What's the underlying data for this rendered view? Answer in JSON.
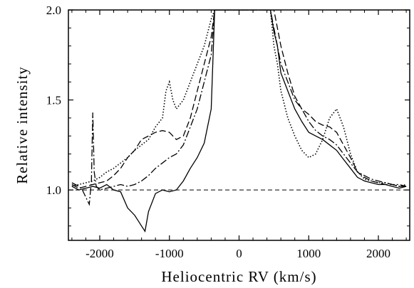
{
  "chart_data": {
    "type": "line",
    "title": "",
    "xlabel": "Heliocentric RV  (km/s)",
    "ylabel": "Relative intensity",
    "xlim": [
      -2450,
      2450
    ],
    "ylim": [
      0.72,
      2.0
    ],
    "grid": false,
    "legend": "none",
    "x_ticks": [
      -2000,
      -1000,
      0,
      1000,
      2000
    ],
    "x_tick_labels": [
      "-2000",
      "-1000",
      "0",
      "1000",
      "2000"
    ],
    "y_ticks": [
      1.0,
      1.5,
      2.0
    ],
    "y_tick_labels": [
      "1.0",
      "1.5",
      "2.0"
    ],
    "reference_line": {
      "y": 1.0,
      "style": "dashed"
    },
    "series": [
      {
        "style": "solid",
        "x": [
          -2400,
          -2300,
          -2200,
          -2100,
          -2000,
          -1900,
          -1800,
          -1700,
          -1600,
          -1500,
          -1450,
          -1400,
          -1350,
          -1300,
          -1200,
          -1100,
          -1000,
          -900,
          -800,
          -700,
          -600,
          -500,
          -400,
          -350,
          450,
          500,
          550,
          600,
          700,
          800,
          900,
          1000,
          1100,
          1200,
          1300,
          1400,
          1500,
          1600,
          1700,
          1800,
          1900,
          2000,
          2100,
          2200,
          2300,
          2400
        ],
        "y": [
          1.02,
          1.0,
          1.01,
          1.02,
          1.01,
          1.03,
          1.0,
          0.99,
          0.9,
          0.86,
          0.83,
          0.8,
          0.77,
          0.88,
          0.98,
          1.0,
          0.99,
          1.0,
          1.05,
          1.12,
          1.18,
          1.26,
          1.45,
          2.0,
          2.0,
          1.88,
          1.8,
          1.65,
          1.55,
          1.45,
          1.38,
          1.32,
          1.3,
          1.28,
          1.25,
          1.22,
          1.17,
          1.12,
          1.07,
          1.05,
          1.04,
          1.03,
          1.03,
          1.02,
          1.01,
          1.02
        ]
      },
      {
        "style": "dashed",
        "x": [
          -2400,
          -2300,
          -2200,
          -2100,
          -2000,
          -1900,
          -1800,
          -1700,
          -1600,
          -1500,
          -1400,
          -1300,
          -1200,
          -1100,
          -1000,
          -900,
          -800,
          -700,
          -600,
          -500,
          -400,
          -350,
          500,
          550,
          600,
          700,
          800,
          900,
          1000,
          1100,
          1200,
          1300,
          1400,
          1500,
          1600,
          1700,
          1800,
          1900,
          2000,
          2100,
          2200,
          2300,
          2400
        ],
        "y": [
          1.03,
          1.01,
          1.02,
          1.03,
          1.04,
          1.05,
          1.08,
          1.12,
          1.18,
          1.22,
          1.28,
          1.3,
          1.32,
          1.33,
          1.32,
          1.28,
          1.3,
          1.4,
          1.55,
          1.7,
          1.85,
          2.0,
          2.0,
          1.9,
          1.8,
          1.65,
          1.52,
          1.45,
          1.42,
          1.38,
          1.36,
          1.35,
          1.32,
          1.25,
          1.18,
          1.1,
          1.07,
          1.05,
          1.04,
          1.03,
          1.03,
          1.02,
          1.02
        ]
      },
      {
        "style": "dotted",
        "x": [
          -2400,
          -2300,
          -2200,
          -2100,
          -2000,
          -1900,
          -1800,
          -1700,
          -1600,
          -1500,
          -1400,
          -1300,
          -1200,
          -1100,
          -1050,
          -1000,
          -950,
          -900,
          -800,
          -700,
          -600,
          -500,
          -400,
          -350,
          450,
          500,
          550,
          600,
          700,
          800,
          900,
          1000,
          1100,
          1200,
          1300,
          1400,
          1500,
          1600,
          1700,
          1800,
          1900,
          2000,
          2100,
          2200,
          2300,
          2400
        ],
        "y": [
          1.02,
          1.03,
          1.04,
          1.05,
          1.07,
          1.1,
          1.12,
          1.15,
          1.18,
          1.22,
          1.25,
          1.28,
          1.35,
          1.4,
          1.55,
          1.6,
          1.5,
          1.45,
          1.5,
          1.6,
          1.7,
          1.8,
          1.95,
          2.0,
          2.0,
          1.8,
          1.7,
          1.55,
          1.4,
          1.3,
          1.22,
          1.18,
          1.2,
          1.28,
          1.4,
          1.45,
          1.35,
          1.2,
          1.1,
          1.06,
          1.05,
          1.04,
          1.04,
          1.03,
          1.02,
          1.03
        ]
      },
      {
        "style": "dash-dot",
        "x": [
          -2400,
          -2300,
          -2250,
          -2200,
          -2150,
          -2120,
          -2100,
          -2080,
          -2050,
          -2000,
          -1900,
          -1800,
          -1700,
          -1600,
          -1500,
          -1400,
          -1300,
          -1200,
          -1100,
          -1000,
          -900,
          -800,
          -700,
          -600,
          -500,
          -400,
          -350,
          450,
          500,
          550,
          600,
          700,
          800,
          900,
          1000,
          1100,
          1200,
          1300,
          1400,
          1500,
          1600,
          1700,
          1800,
          1900,
          2000,
          2100,
          2200,
          2300,
          2400
        ],
        "y": [
          1.04,
          1.02,
          1.0,
          0.96,
          0.92,
          1.05,
          1.43,
          1.1,
          1.02,
          1.0,
          1.01,
          1.02,
          1.03,
          1.02,
          1.03,
          1.05,
          1.08,
          1.12,
          1.15,
          1.18,
          1.2,
          1.25,
          1.35,
          1.45,
          1.6,
          1.75,
          2.0,
          2.0,
          1.9,
          1.8,
          1.7,
          1.6,
          1.5,
          1.45,
          1.38,
          1.33,
          1.3,
          1.28,
          1.25,
          1.2,
          1.15,
          1.1,
          1.08,
          1.06,
          1.05,
          1.04,
          1.03,
          1.03,
          1.02
        ]
      }
    ]
  }
}
